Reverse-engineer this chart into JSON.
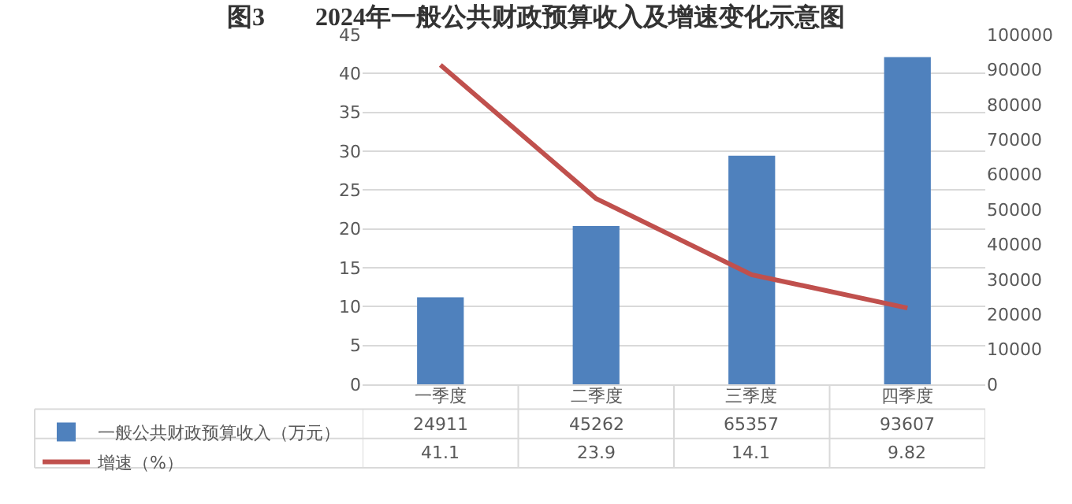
{
  "chart_data": {
    "type": "bar",
    "title": "图3　　2024年一般公共财政预算收入及增速变化示意图",
    "categories": [
      "一季度",
      "二季度",
      "三季度",
      "四季度"
    ],
    "series": [
      {
        "name": "一般公共财政预算收入（万元）",
        "axis": "y2",
        "color": "#4f81bd",
        "values": [
          24911,
          45262,
          65357,
          93607
        ]
      },
      {
        "name": "增速（%）",
        "type": "line",
        "axis": "y",
        "color": "#c0504d",
        "values": [
          41.1,
          23.9,
          14.1,
          9.82
        ]
      }
    ],
    "ylim": [
      0,
      45
    ],
    "yticks": [
      0,
      5,
      10,
      15,
      20,
      25,
      30,
      35,
      40,
      45
    ],
    "y2lim": [
      0,
      100000
    ],
    "y2ticks": [
      0,
      10000,
      20000,
      30000,
      40000,
      50000,
      60000,
      70000,
      80000,
      90000,
      100000
    ],
    "grid": "y",
    "legend": "bottom left",
    "data_labels": true,
    "marker": "none",
    "line_style": "solid"
  }
}
